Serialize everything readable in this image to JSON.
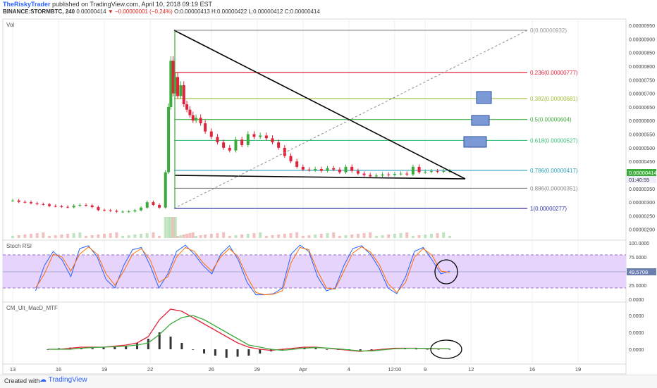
{
  "header": {
    "author": "TheRiskyTrader",
    "published": " published on TradingView.com, April 10, 2018 09:19 EST",
    "symbol": "BINANCE:STORMBTC, 240",
    "last_price": "0.00000414",
    "change": "−0.00000001 (−0.24%)",
    "ohlc": "O:0.00000413 H:0.00000422 L:0.00000412 C:0.00000414"
  },
  "footer": {
    "created_with": "Created with",
    "brand": "TradingView"
  },
  "colors": {
    "up": "#3cab3c",
    "down": "#e0243b",
    "stoch_band": "#e3cdfd"
  },
  "chart_data": [
    {
      "type": "candlestick",
      "pane": "price",
      "title": "Vol",
      "ylim": [
        2e-06,
        9.5e-07
      ],
      "y_ticks": [
        "0.00000950",
        "0.00000900",
        "0.00000850",
        "0.00000800",
        "0.00000750",
        "0.00000700",
        "0.00000650",
        "0.00000600",
        "0.00000550",
        "0.00000500",
        "0.00000450",
        "0.00000400",
        "0.00000350",
        "0.00000300",
        "0.00000250",
        "0.00000200"
      ],
      "current_price_label": "0.00000414",
      "countdown_label": "01:40:55",
      "x_ticks": [
        "13",
        "16",
        "19",
        "22",
        "26",
        "29",
        "Apr",
        "4",
        "12:00",
        "9",
        "12",
        "16",
        "19"
      ],
      "x_ticks_day": [
        13,
        16,
        19,
        22,
        26,
        29,
        32,
        35,
        38,
        40,
        43,
        47,
        50
      ],
      "series": [
        {
          "day": [
            13.0,
            13.4,
            13.8,
            14.2,
            14.6,
            15.0,
            15.4,
            15.8,
            16.2,
            16.6,
            17.0,
            17.4,
            17.8,
            18.2,
            18.6,
            19.0,
            19.4,
            19.8,
            20.2,
            20.6,
            21.0,
            21.4,
            21.8,
            22.2,
            22.6,
            23.0,
            23.2,
            23.35,
            23.5,
            23.65,
            23.8,
            24.0,
            24.2,
            24.4,
            24.6,
            24.8,
            25.0,
            25.3,
            25.6,
            26.0,
            26.4,
            26.8,
            27.2,
            27.6,
            28.0,
            28.4,
            28.8,
            29.2,
            29.6,
            30.0,
            30.4,
            30.8,
            31.2,
            31.6,
            32.0,
            32.4,
            32.8,
            33.2,
            33.6,
            34.0,
            34.4,
            34.8,
            35.2,
            35.6,
            36.0,
            36.4,
            36.8,
            37.2,
            37.6,
            38.0,
            38.4,
            38.8,
            39.2,
            39.6,
            40.0,
            40.4,
            40.8,
            41.2,
            41.6
          ],
          "close": [
            3.06e-06,
            3.01e-06,
            3e-06,
            2.96e-06,
            2.93e-06,
            2.92e-06,
            2.86e-06,
            2.85e-06,
            2.83e-06,
            2.81e-06,
            2.87e-06,
            2.9e-06,
            2.88e-06,
            2.82e-06,
            2.71e-06,
            2.7e-06,
            2.68e-06,
            2.65e-06,
            2.65e-06,
            2.66e-06,
            2.7e-06,
            2.8e-06,
            3e-06,
            2.9e-06,
            2.8e-06,
            4.1e-06,
            6.5e-06,
            8.2e-06,
            7e-06,
            7.6e-06,
            6.9e-06,
            7.3e-06,
            6.6e-06,
            6.4e-06,
            6.2e-06,
            6e-06,
            6.1e-06,
            5.9e-06,
            5.6e-06,
            5.4e-06,
            5.2e-06,
            5e-06,
            4.9e-06,
            5.3e-06,
            5.1e-06,
            5.5e-06,
            5.4e-06,
            5.45e-06,
            5.35e-06,
            5.2e-06,
            5e-06,
            4.7e-06,
            4.5e-06,
            4.3e-06,
            4.2e-06,
            4.18e-06,
            4.22e-06,
            4.15e-06,
            4.25e-06,
            4.2e-06,
            4.1e-06,
            4.3e-06,
            4.15e-06,
            4.05e-06,
            4e-06,
            3.95e-06,
            3.98e-06,
            4.02e-06,
            4e-06,
            4.04e-06,
            4.05e-06,
            4.02e-06,
            4.3e-06,
            4.1e-06,
            4.12e-06,
            4.14e-06,
            4.13e-06,
            4.14e-06,
            4.14e-06
          ]
        }
      ],
      "fib_levels": [
        {
          "label": "0(0.00000932)",
          "value": 9.32e-06,
          "color": "#999999"
        },
        {
          "label": "0.236(0.00000777)",
          "value": 7.77e-06,
          "color": "#e0243b"
        },
        {
          "label": "0.382(0.00000681)",
          "value": 6.81e-06,
          "color": "#9cbd3b"
        },
        {
          "label": "0.5(0.00000604)",
          "value": 6.04e-06,
          "color": "#3cab3c"
        },
        {
          "label": "0.618(0.00000527)",
          "value": 5.27e-06,
          "color": "#3cbf7c"
        },
        {
          "label": "0.786(0.00000417)",
          "value": 4.17e-06,
          "color": "#2aa0b8"
        },
        {
          "label": "0.886(0.00000351)",
          "value": 3.51e-06,
          "color": "#888888"
        },
        {
          "label": "1(0.00000277)",
          "value": 2.77e-06,
          "color": "#3333aa"
        }
      ]
    },
    {
      "type": "line",
      "pane": "oscillator",
      "title": "Stoch RSI",
      "ylim": [
        0,
        100
      ],
      "y_ticks": [
        "100.0000",
        "75.0000",
        "50.0000",
        "25.0000",
        "0.0000"
      ],
      "current_label": "49.5708",
      "band": [
        20,
        80
      ],
      "series": [
        {
          "color": "#2962ff",
          "values": [
            15,
            60,
            85,
            70,
            40,
            90,
            95,
            75,
            35,
            20,
            60,
            88,
            92,
            60,
            20,
            45,
            85,
            96,
            80,
            60,
            45,
            80,
            95,
            70,
            30,
            8,
            8,
            10,
            20,
            80,
            96,
            85,
            40,
            15,
            20,
            60,
            90,
            95,
            80,
            55,
            20,
            10,
            40,
            85,
            92,
            70,
            45,
            50
          ]
        },
        {
          "color": "#ff6d00",
          "values": [
            20,
            45,
            80,
            75,
            50,
            80,
            93,
            80,
            45,
            25,
            50,
            80,
            90,
            70,
            30,
            40,
            75,
            92,
            85,
            65,
            50,
            75,
            90,
            75,
            40,
            12,
            8,
            9,
            15,
            65,
            92,
            88,
            50,
            20,
            18,
            50,
            82,
            93,
            84,
            62,
            28,
            12,
            30,
            75,
            90,
            78,
            50,
            48
          ]
        }
      ]
    },
    {
      "type": "line",
      "pane": "macd",
      "title": "CM_Ult_MacD_MTF",
      "y_ticks": [
        "0.0000",
        "0.0000",
        "0.0000"
      ],
      "current_label": "0.0000",
      "series": [
        {
          "color": "#e0243b",
          "values": [
            0,
            0,
            0.5,
            1,
            1,
            1,
            1.5,
            2,
            3,
            6,
            14,
            19,
            18,
            15,
            12,
            9,
            6,
            3,
            1,
            0,
            -0.5,
            0,
            0.5,
            1,
            1,
            0.5,
            0,
            -0.5,
            -1,
            -0.5,
            0,
            0.5,
            0.5,
            0.5,
            0.3,
            0.2,
            0.2
          ]
        },
        {
          "color": "#3cab3c",
          "values": [
            0,
            0,
            0,
            0.5,
            0.8,
            1,
            1.2,
            1.5,
            2,
            3,
            7,
            12,
            15,
            16,
            14,
            11,
            8,
            5,
            2,
            1,
            0,
            -0.5,
            0,
            0.5,
            0.8,
            0.6,
            0.2,
            -0.3,
            -0.8,
            -0.8,
            -0.3,
            0.2,
            0.4,
            0.5,
            0.4,
            0.3,
            0.2
          ]
        }
      ],
      "histogram": [
        0,
        0.5,
        0.8,
        0.6,
        0.5,
        0.8,
        1,
        1.5,
        3,
        5,
        8,
        6,
        3,
        0,
        -2,
        -3,
        -4,
        -3.5,
        -3,
        -2,
        -1,
        -0.5,
        0.5,
        0.8,
        0.5,
        0,
        -0.3,
        -0.5,
        -0.6,
        -0.4,
        0.2,
        0.4,
        0.3,
        0.2,
        0.1,
        0.1,
        0.1
      ]
    }
  ]
}
